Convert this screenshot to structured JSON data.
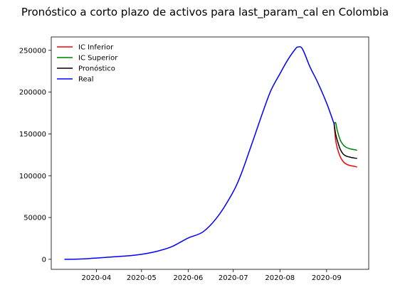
{
  "chart_data": {
    "type": "line",
    "title": "Pronóstico a corto plazo de activos para last_param_cal en Colombia",
    "xlabel": "",
    "ylabel": "",
    "x_type": "date",
    "xlim": [
      "2020-03-02",
      "2020-09-29"
    ],
    "ylim": [
      -12000,
      266000
    ],
    "x_ticks": [
      {
        "date": "2020-04-01",
        "label": "2020-04"
      },
      {
        "date": "2020-05-01",
        "label": "2020-05"
      },
      {
        "date": "2020-06-01",
        "label": "2020-06"
      },
      {
        "date": "2020-07-01",
        "label": "2020-07"
      },
      {
        "date": "2020-08-01",
        "label": "2020-08"
      },
      {
        "date": "2020-09-01",
        "label": "2020-09"
      }
    ],
    "y_ticks": [
      {
        "value": 0,
        "label": "0"
      },
      {
        "value": 50000,
        "label": "50000"
      },
      {
        "value": 100000,
        "label": "100000"
      },
      {
        "value": 150000,
        "label": "150000"
      },
      {
        "value": 200000,
        "label": "200000"
      },
      {
        "value": 250000,
        "label": "250000"
      }
    ],
    "grid": false,
    "legend": "top-left",
    "series": [
      {
        "name": "IC Inferior",
        "color": "#ff0000",
        "x": [
          "2020-09-06",
          "2020-09-07",
          "2020-09-08",
          "2020-09-10",
          "2020-09-12",
          "2020-09-14",
          "2020-09-17",
          "2020-09-20",
          "2020-09-21"
        ],
        "y": [
          162000,
          143000,
          134000,
          123000,
          117000,
          114000,
          112000,
          111000,
          110500
        ]
      },
      {
        "name": "IC Superior",
        "color": "#008000",
        "x": [
          "2020-09-06",
          "2020-09-07",
          "2020-09-08",
          "2020-09-10",
          "2020-09-12",
          "2020-09-14",
          "2020-09-17",
          "2020-09-20",
          "2020-09-21"
        ],
        "y": [
          162000,
          163500,
          155000,
          143000,
          137000,
          134000,
          132000,
          131000,
          130500
        ]
      },
      {
        "name": "Pronóstico",
        "color": "#000000",
        "x": [
          "2020-09-06",
          "2020-09-07",
          "2020-09-08",
          "2020-09-10",
          "2020-09-12",
          "2020-09-14",
          "2020-09-17",
          "2020-09-20",
          "2020-09-21"
        ],
        "y": [
          162000,
          150000,
          143000,
          132000,
          126000,
          123500,
          122000,
          121000,
          120800
        ]
      },
      {
        "name": "Real",
        "color": "#0000ff",
        "x": [
          "2020-03-11",
          "2020-03-21",
          "2020-04-01",
          "2020-04-11",
          "2020-04-21",
          "2020-05-01",
          "2020-05-11",
          "2020-05-21",
          "2020-06-01",
          "2020-06-11",
          "2020-06-21",
          "2020-07-01",
          "2020-07-06",
          "2020-07-11",
          "2020-07-16",
          "2020-07-21",
          "2020-07-26",
          "2020-08-01",
          "2020-08-06",
          "2020-08-11",
          "2020-08-13",
          "2020-08-16",
          "2020-08-21",
          "2020-08-26",
          "2020-09-01",
          "2020-09-06"
        ],
        "y": [
          0,
          300,
          1500,
          2800,
          4000,
          6000,
          9500,
          15000,
          25500,
          33000,
          52000,
          81000,
          101000,
          126000,
          152000,
          178000,
          202000,
          222000,
          238000,
          251000,
          254000,
          251500,
          230000,
          212000,
          187000,
          162000
        ]
      }
    ]
  }
}
